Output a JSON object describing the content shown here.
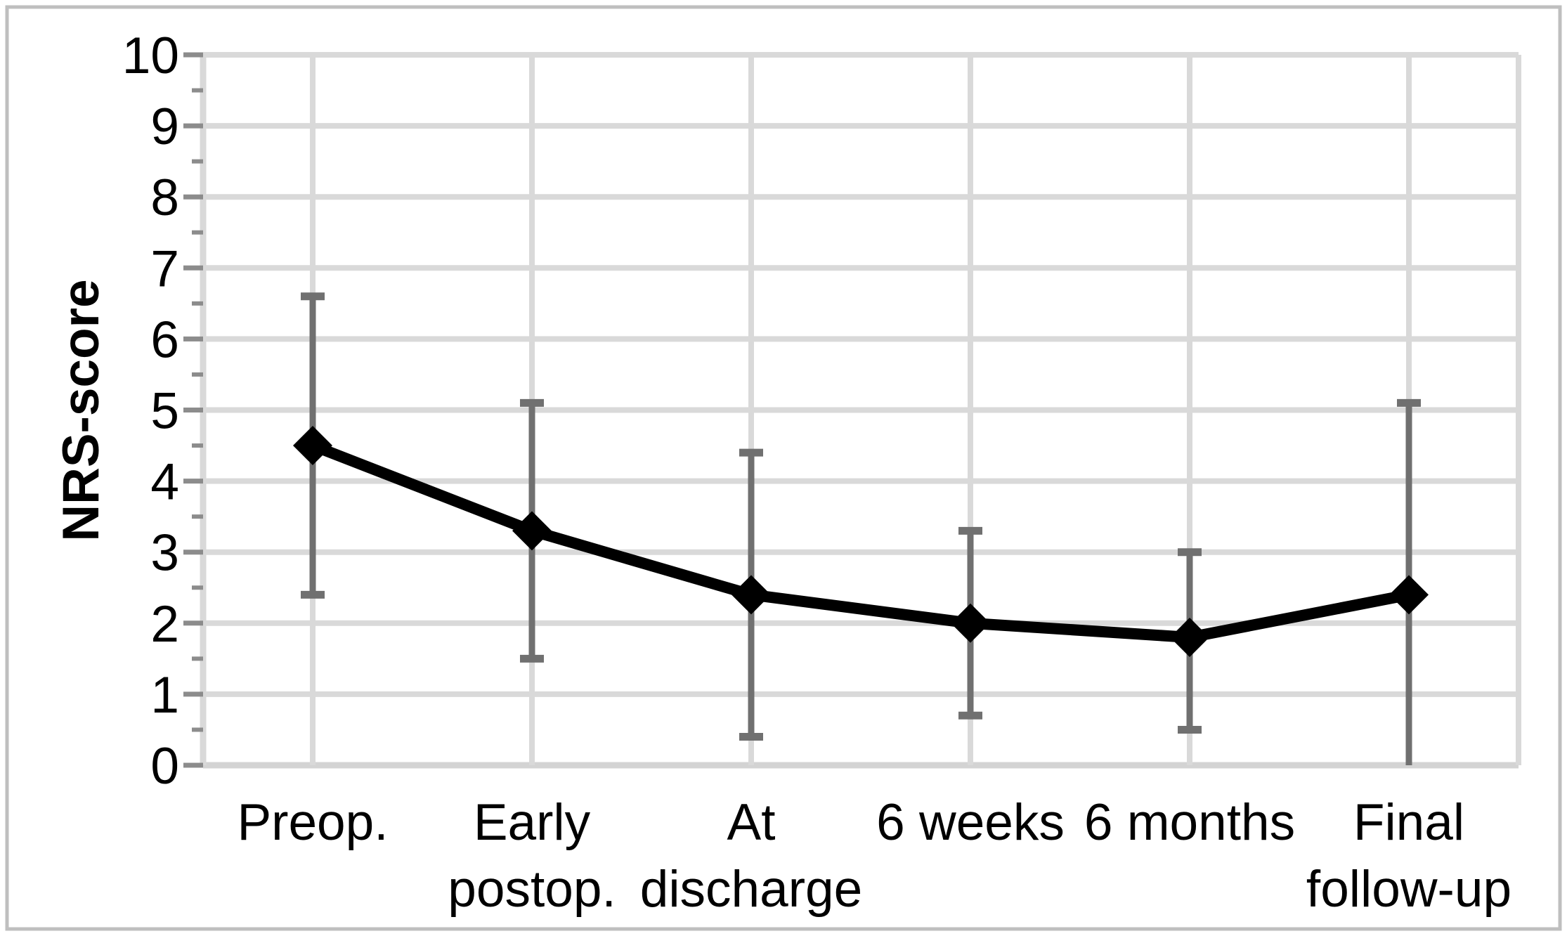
{
  "figure": {
    "background": "#ffffff",
    "border_color": "#bfbfbf"
  },
  "colors": {
    "gridline": "#d9d9d9",
    "baseline": "#d3d3d3",
    "axis_tick": "#8c8c8c",
    "error_bar": "#707070",
    "series_line": "#000000",
    "marker": "#000000",
    "text": "#000000"
  },
  "chart_data": {
    "type": "line",
    "ylabel": "NRS-score",
    "ylim": [
      0,
      10
    ],
    "y_major_tick_interval": 1,
    "y_minor_tick_interval": 0.5,
    "y_tick_labels": [
      "0",
      "1",
      "2",
      "3",
      "4",
      "5",
      "6",
      "7",
      "8",
      "9",
      "10"
    ],
    "grid": "both",
    "legend": "none",
    "categories": [
      {
        "lines": [
          "Preop."
        ]
      },
      {
        "lines": [
          "Early",
          "postop."
        ]
      },
      {
        "lines": [
          "At",
          "discharge"
        ]
      },
      {
        "lines": [
          "6 weeks"
        ]
      },
      {
        "lines": [
          "6 months"
        ]
      },
      {
        "lines": [
          "Final",
          "follow-up"
        ]
      }
    ],
    "series": [
      {
        "marker": "diamond",
        "color": "#000000",
        "error_color": "#707070",
        "values": [
          4.5,
          3.3,
          2.4,
          2.0,
          1.8,
          2.4
        ],
        "error_upper": [
          6.6,
          5.1,
          4.4,
          3.3,
          3.0,
          5.1
        ],
        "error_lower": [
          2.4,
          1.5,
          0.4,
          0.7,
          0.5,
          0.0
        ],
        "error_lower_cap": [
          true,
          true,
          true,
          true,
          true,
          false
        ]
      }
    ]
  }
}
